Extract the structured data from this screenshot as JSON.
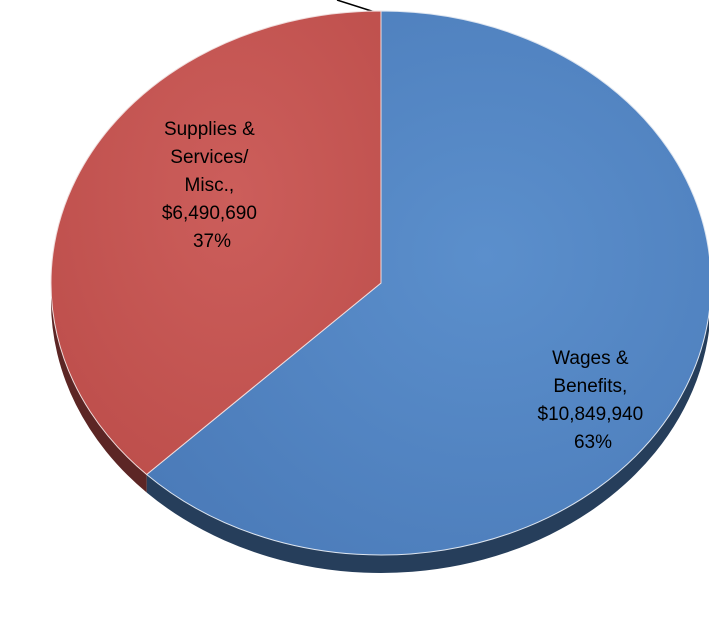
{
  "chart_data": {
    "type": "pie",
    "style": "3d",
    "slices": [
      {
        "name": "Wages & Benefits",
        "value": 10849940,
        "percent": 63,
        "color": "#4F81BD",
        "label_lines": [
          "Wages &",
          "Benefits,",
          "$10,849,940",
          "63%"
        ]
      },
      {
        "name": "Supplies & Services/ Misc.",
        "value": 6490690,
        "percent": 37,
        "color": "#C0504D",
        "label_lines": [
          "Supplies &",
          "Services/",
          "Misc.,",
          "$6,490,690",
          "37%"
        ]
      }
    ]
  }
}
